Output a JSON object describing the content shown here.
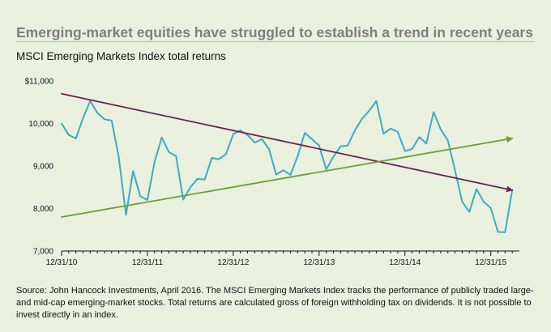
{
  "header": {
    "headline": "Emerging-market equities have struggled to establish a trend in recent years",
    "subtitle": "MSCI Emerging Markets Index total returns"
  },
  "footnote": "Source: John Hancock Investments, April 2016. The MSCI Emerging Markets Index tracks the performance of publicly traded large- and mid-cap emerging-market stocks. Total returns are calculated gross of foreign withholding tax on dividends. It is not possible to invest directly in an index.",
  "chart_data": {
    "type": "line",
    "title": "MSCI Emerging Markets Index total returns",
    "xlabel": "",
    "ylabel": "",
    "ylim": [
      7000,
      11000
    ],
    "xlim": [
      0,
      64
    ],
    "yticks": [
      {
        "value": 11000,
        "label": "$11,000"
      },
      {
        "value": 10000,
        "label": "10,000"
      },
      {
        "value": 9000,
        "label": "9,000"
      },
      {
        "value": 8000,
        "label": "8,000"
      },
      {
        "value": 7000,
        "label": "7,000"
      }
    ],
    "xticks": [
      {
        "value": 0,
        "label": "12/31/10"
      },
      {
        "value": 12,
        "label": "12/31/11"
      },
      {
        "value": 24,
        "label": "12/31/12"
      },
      {
        "value": 36,
        "label": "12/31/13"
      },
      {
        "value": 48,
        "label": "12/31/14"
      },
      {
        "value": 60,
        "label": "12/31/15"
      }
    ],
    "series": [
      {
        "name": "MSCI Emerging Markets Index",
        "color": "#3fa9c3",
        "x": [
          0,
          1,
          2,
          3,
          4,
          5,
          6,
          7,
          8,
          9,
          10,
          11,
          12,
          13,
          14,
          15,
          16,
          17,
          18,
          19,
          20,
          21,
          22,
          23,
          24,
          25,
          26,
          27,
          28,
          29,
          30,
          31,
          32,
          33,
          34,
          35,
          36,
          37,
          38,
          39,
          40,
          41,
          42,
          43,
          44,
          45,
          46,
          47,
          48,
          49,
          50,
          51,
          52,
          53,
          54,
          55,
          56,
          57,
          58,
          59,
          60,
          61,
          62,
          63
        ],
        "values": [
          10000,
          9730,
          9650,
          10130,
          10530,
          10250,
          10100,
          10070,
          9200,
          7850,
          8880,
          8290,
          8200,
          9100,
          9670,
          9330,
          9230,
          8210,
          8500,
          8700,
          8680,
          9190,
          9160,
          9280,
          9750,
          9840,
          9730,
          9550,
          9630,
          9400,
          8800,
          8900,
          8790,
          9230,
          9780,
          9630,
          9480,
          8920,
          9220,
          9460,
          9480,
          9840,
          10110,
          10300,
          10530,
          9760,
          9880,
          9800,
          9350,
          9400,
          9680,
          9530,
          10270,
          9860,
          9600,
          8900,
          8160,
          7920,
          8460,
          8160,
          8010,
          7450,
          7440,
          8440
        ]
      },
      {
        "name": "Downward trend line",
        "color": "#6b2456",
        "x": [
          0,
          63
        ],
        "values": [
          10700,
          8430
        ]
      },
      {
        "name": "Upward trend line",
        "color": "#6aa032",
        "x": [
          0,
          63
        ],
        "values": [
          7800,
          9650
        ]
      }
    ],
    "grid": false,
    "legend": "none"
  }
}
